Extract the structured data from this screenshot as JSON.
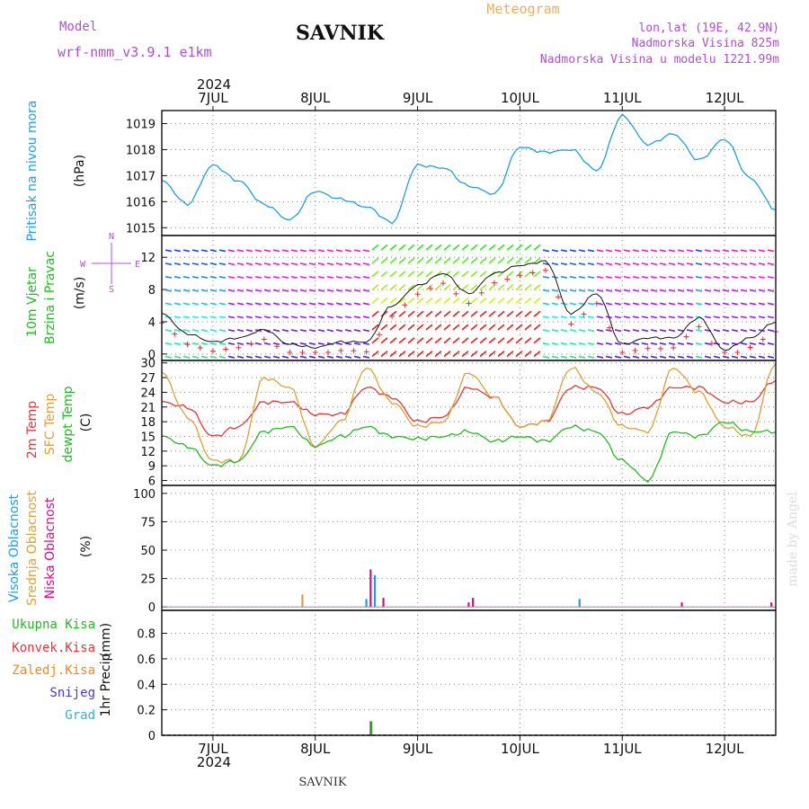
{
  "header": {
    "model_label": "Model",
    "model_name": "wrf-nmm_v3.9.1  e1km",
    "station": "SAVNIK",
    "product": "Meteogram",
    "lonlat": "lon,lat (19E, 42.9N)",
    "elevation": "Nadmorska Visina 825m",
    "model_elevation": "Nadmorska Visina u modelu 1221.99m",
    "year_top": "2024",
    "year_bottom": "2024",
    "footer_station": "SAVNIK",
    "watermark": "made by Angel"
  },
  "colors": {
    "pressure": "#1ea0e0",
    "t2m": "#e03838",
    "sfc": "#e0a030",
    "dew": "#22bb22",
    "wind_line": "#111111",
    "wind_cross": "#e03030",
    "precip_total": "#2ca02c",
    "magenta": "#b020d0",
    "orange": "#f08a1c",
    "blue": "#4a3ad0",
    "cyan": "#29b8c8",
    "high": "#1ea0e0",
    "mid": "#e0a030",
    "low": "#d01090"
  },
  "chart_data": {
    "type": "line",
    "x_axis": {
      "type": "time",
      "start": "2024-07-06 12:00",
      "end": "2024-07-12 12:00",
      "day_labels": [
        "7JUL",
        "8JUL",
        "9JUL",
        "10JUL",
        "11JUL",
        "12JUL"
      ]
    },
    "panels": [
      {
        "id": "pressure",
        "ylabel": "Pritisak na nivou mora",
        "unit": "(hPa)",
        "ylim": [
          1014.7,
          1019.5
        ],
        "yticks": [
          1015,
          1016,
          1017,
          1018,
          1019
        ],
        "series": [
          {
            "key": "pressure",
            "x": [
              "07-06 12:00",
              "07-06 18:00",
              "07-07 00:00",
              "07-07 06:00",
              "07-07 12:00",
              "07-07 18:00",
              "07-08 00:00",
              "07-08 06:00",
              "07-08 12:00",
              "07-08 18:00",
              "07-09 00:00",
              "07-09 06:00",
              "07-09 12:00",
              "07-09 18:00",
              "07-10 00:00",
              "07-10 06:00",
              "07-10 12:00",
              "07-10 18:00",
              "07-11 00:00",
              "07-11 06:00",
              "07-11 12:00",
              "07-11 18:00",
              "07-12 00:00",
              "07-12 06:00",
              "07-12 12:00"
            ],
            "y": [
              1016.8,
              1015.9,
              1017.4,
              1016.8,
              1015.9,
              1015.3,
              1016.4,
              1016.1,
              1015.8,
              1015.2,
              1017.4,
              1017.3,
              1016.6,
              1016.3,
              1018.1,
              1017.9,
              1018.0,
              1017.2,
              1019.3,
              1018.2,
              1018.6,
              1017.6,
              1018.4,
              1016.9,
              1015.7
            ]
          }
        ]
      },
      {
        "id": "wind",
        "ylabel": "10m Vjetar",
        "ylabel2": "Brzina i Pravac",
        "unit": "(m/s)",
        "compass_n": "N",
        "compass_e": "E",
        "compass_w": "W",
        "compass_s": "S",
        "ylim": [
          -0.8,
          14.7
        ],
        "yticks": [
          0,
          4,
          8,
          12
        ],
        "series": [
          {
            "key": "wind_line",
            "x": [
              "07-06 12:00",
              "07-06 18:00",
              "07-07 00:00",
              "07-07 06:00",
              "07-07 12:00",
              "07-07 18:00",
              "07-08 00:00",
              "07-08 06:00",
              "07-08 12:00",
              "07-08 18:00",
              "07-09 00:00",
              "07-09 06:00",
              "07-09 12:00",
              "07-09 18:00",
              "07-10 00:00",
              "07-10 06:00",
              "07-10 12:00",
              "07-10 18:00",
              "07-11 00:00",
              "07-11 06:00",
              "07-11 12:00",
              "07-11 18:00",
              "07-12 00:00",
              "07-12 06:00",
              "07-12 12:00"
            ],
            "y": [
              5.0,
              2.5,
              1.5,
              2.0,
              3.0,
              1.2,
              0.8,
              1.5,
              1.5,
              6.0,
              8.5,
              10.0,
              7.5,
              10.0,
              11.0,
              11.5,
              5.0,
              7.5,
              1.2,
              2.0,
              2.0,
              4.5,
              0.5,
              2.0,
              4.0
            ]
          }
        ]
      },
      {
        "id": "temperature",
        "ylabel": "2m Temp",
        "ylabel2": "SFC Temp",
        "ylabel3": "dewpt Temp",
        "unit": "(C)",
        "ylim": [
          5,
          30.5
        ],
        "yticks": [
          6,
          9,
          12,
          15,
          18,
          21,
          24,
          27,
          30
        ],
        "series": [
          {
            "key": "t2m",
            "name": "2m Temp",
            "x": [
              "07-06 12:00",
              "07-06 18:00",
              "07-07 00:00",
              "07-07 06:00",
              "07-07 12:00",
              "07-07 18:00",
              "07-08 00:00",
              "07-08 06:00",
              "07-08 12:00",
              "07-08 18:00",
              "07-09 00:00",
              "07-09 06:00",
              "07-09 12:00",
              "07-09 18:00",
              "07-10 00:00",
              "07-10 06:00",
              "07-10 12:00",
              "07-10 18:00",
              "07-11 00:00",
              "07-11 06:00",
              "07-11 12:00",
              "07-11 18:00",
              "07-12 00:00",
              "07-12 06:00",
              "07-12 12:00"
            ],
            "y": [
              22,
              21,
              15,
              17,
              22,
              22,
              19.5,
              19.5,
              25,
              23,
              18,
              19,
              25,
              23,
              17,
              18,
              25,
              25,
              19.5,
              21,
              25,
              25,
              22,
              22,
              26.5
            ]
          },
          {
            "key": "sfc",
            "name": "SFC Temp",
            "x": [
              "07-06 12:00",
              "07-06 18:00",
              "07-07 00:00",
              "07-07 06:00",
              "07-07 12:00",
              "07-07 18:00",
              "07-08 00:00",
              "07-08 06:00",
              "07-08 12:00",
              "07-08 18:00",
              "07-09 00:00",
              "07-09 06:00",
              "07-09 12:00",
              "07-09 18:00",
              "07-10 00:00",
              "07-10 06:00",
              "07-10 12:00",
              "07-10 18:00",
              "07-11 00:00",
              "07-11 06:00",
              "07-11 12:00",
              "07-11 18:00",
              "07-12 00:00",
              "07-12 06:00",
              "07-12 12:00"
            ],
            "y": [
              28,
              19,
              10,
              10,
              27,
              25,
              13,
              18,
              29,
              22,
              17,
              18,
              28,
              23,
              17,
              18,
              29,
              24,
              17,
              16,
              29,
              24,
              17,
              15,
              30
            ]
          },
          {
            "key": "dew",
            "name": "dewpt Temp",
            "x": [
              "07-06 12:00",
              "07-06 18:00",
              "07-07 00:00",
              "07-07 06:00",
              "07-07 12:00",
              "07-07 18:00",
              "07-08 00:00",
              "07-08 06:00",
              "07-08 12:00",
              "07-08 18:00",
              "07-09 00:00",
              "07-09 06:00",
              "07-09 12:00",
              "07-09 18:00",
              "07-10 00:00",
              "07-10 06:00",
              "07-10 12:00",
              "07-10 18:00",
              "07-11 00:00",
              "07-11 06:00",
              "07-11 12:00",
              "07-11 18:00",
              "07-12 00:00",
              "07-12 06:00",
              "07-12 12:00"
            ],
            "y": [
              15,
              13,
              9,
              10,
              16,
              17,
              13,
              15,
              17,
              15,
              14.5,
              15,
              16,
              14,
              15,
              14,
              17,
              16,
              10,
              6,
              16,
              15,
              18,
              16,
              16
            ]
          }
        ]
      },
      {
        "id": "clouds",
        "ylabel": "Visoka Oblacnost",
        "ylabel2": "Srednja Oblacnost",
        "ylabel3": "Niska Oblacnost",
        "unit": "(%)",
        "ylim": [
          -3,
          107
        ],
        "yticks": [
          0,
          25,
          50,
          75,
          100
        ],
        "bars": [
          {
            "x": "07-07 21:00",
            "value": 11,
            "key": "mid"
          },
          {
            "x": "07-08 12:00",
            "value": 7,
            "key": "high"
          },
          {
            "x": "07-08 13:00",
            "value": 33,
            "key": "low"
          },
          {
            "x": "07-08 14:00",
            "value": 28,
            "key": "high"
          },
          {
            "x": "07-08 16:00",
            "value": 8,
            "key": "low"
          },
          {
            "x": "07-09 12:00",
            "value": 4,
            "key": "low"
          },
          {
            "x": "07-09 13:00",
            "value": 8,
            "key": "low"
          },
          {
            "x": "07-10 14:00",
            "value": 7,
            "key": "high"
          },
          {
            "x": "07-11 14:00",
            "value": 4,
            "key": "low"
          },
          {
            "x": "07-12 11:00",
            "value": 4,
            "key": "low"
          }
        ]
      },
      {
        "id": "precip",
        "legend": [
          "Ukupna Kisa",
          "Konvek.Kisa",
          "Zaledj.Kisa",
          "Snijeg",
          "Grad"
        ],
        "ylabel": "1hr Precip",
        "unit": "(mm)",
        "ylim": [
          0,
          0.98
        ],
        "yticks": [
          0,
          0.2,
          0.4,
          0.6,
          0.8
        ],
        "bars": [
          {
            "x": "07-08 13:00",
            "value": 0.11,
            "key": "precip_total"
          }
        ]
      }
    ]
  }
}
